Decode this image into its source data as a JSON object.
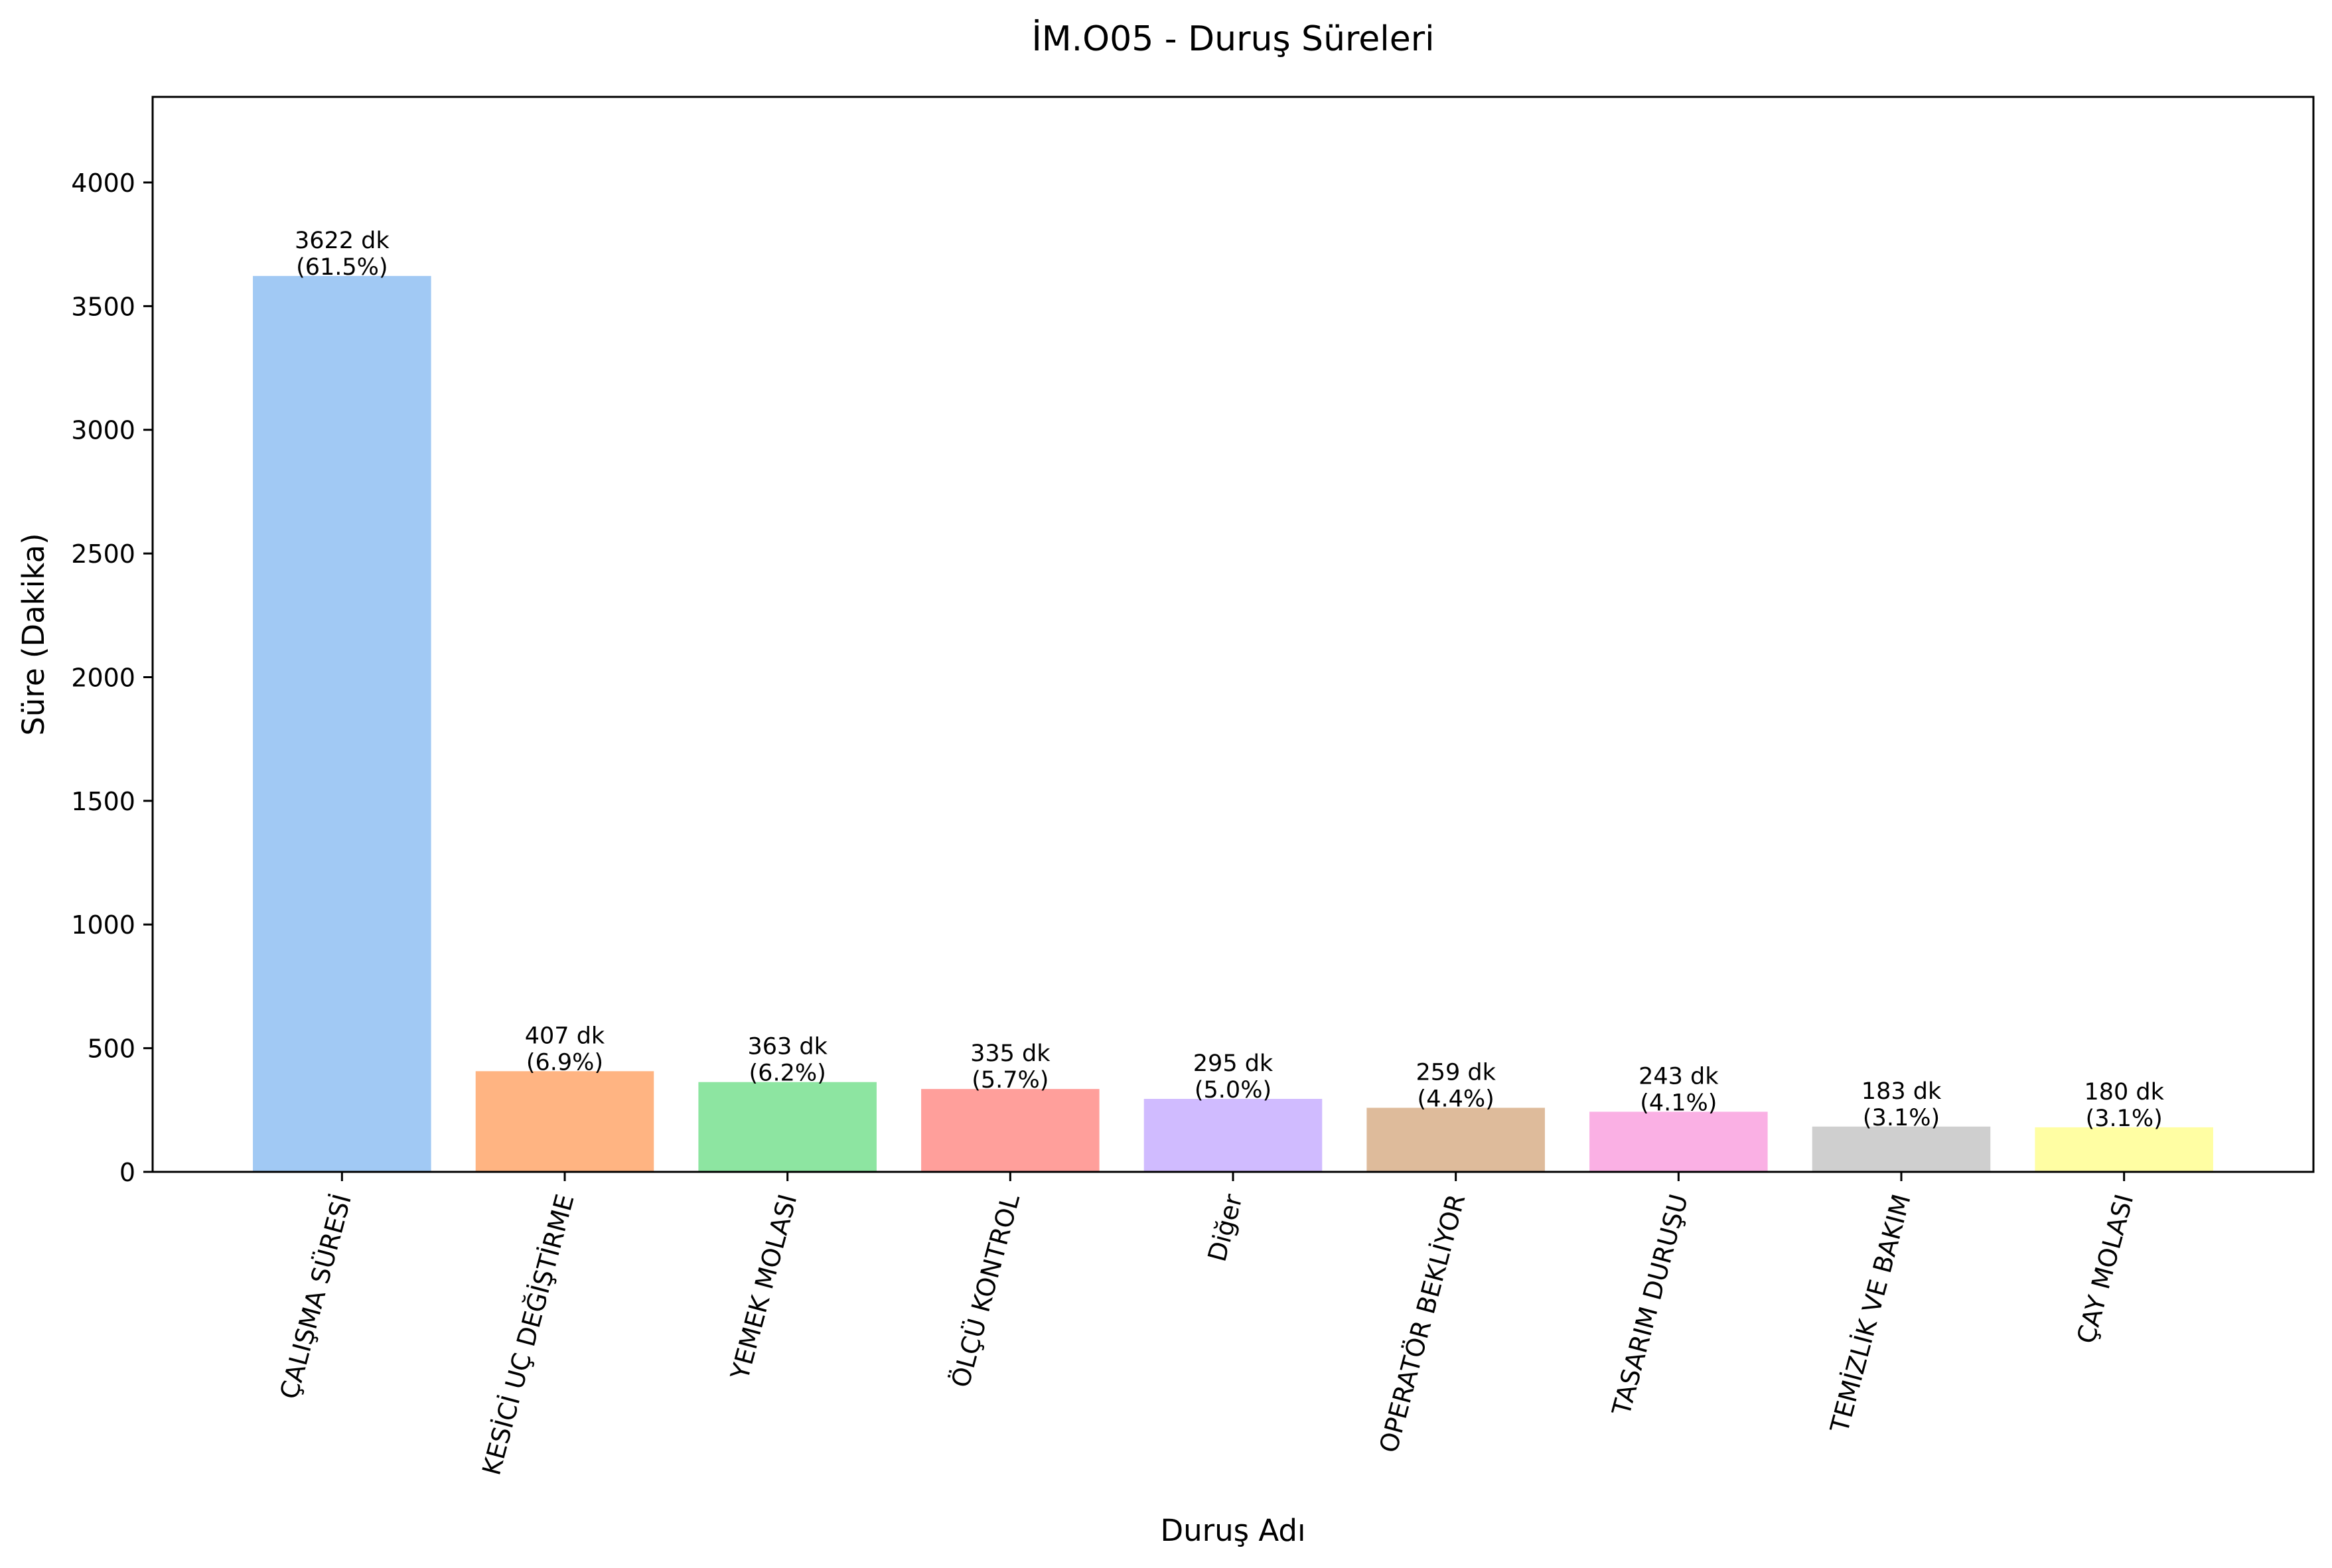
{
  "chart_data": {
    "type": "bar",
    "title": "İM.O05 - Duruş Süreleri",
    "xlabel": "Duruş Adı",
    "ylabel": "Süre (Dakika)",
    "ylim": [
      0,
      4346
    ],
    "yticks": [
      0,
      500,
      1000,
      1500,
      2000,
      2500,
      3000,
      3500,
      4000
    ],
    "grid": false,
    "categories": [
      "ÇALIŞMA SÜRESİ",
      "KESİCİ UÇ DEĞİŞTİRME",
      "YEMEK MOLASI",
      "ÖLÇÜ KONTROL",
      "Diğer",
      "OPERATÖR BEKLİYOR",
      "TASARIM DURUŞU",
      "TEMİZLİK VE BAKIM",
      "ÇAY MOLASI"
    ],
    "values": [
      3622,
      407,
      363,
      335,
      295,
      259,
      243,
      183,
      180
    ],
    "value_labels": [
      "3622 dk",
      "407 dk",
      "363 dk",
      "335 dk",
      "295 dk",
      "259 dk",
      "243 dk",
      "183 dk",
      "180 dk"
    ],
    "percent_labels": [
      "(61.5%)",
      "(6.9%)",
      "(6.2%)",
      "(5.7%)",
      "(5.0%)",
      "(4.4%)",
      "(4.1%)",
      "(3.1%)",
      "(3.1%)"
    ],
    "colors": [
      "#a1c9f4",
      "#ffb482",
      "#8de5a1",
      "#ff9f9b",
      "#d0bbff",
      "#debb9b",
      "#fab0e4",
      "#cfcfcf",
      "#fffea3"
    ]
  }
}
